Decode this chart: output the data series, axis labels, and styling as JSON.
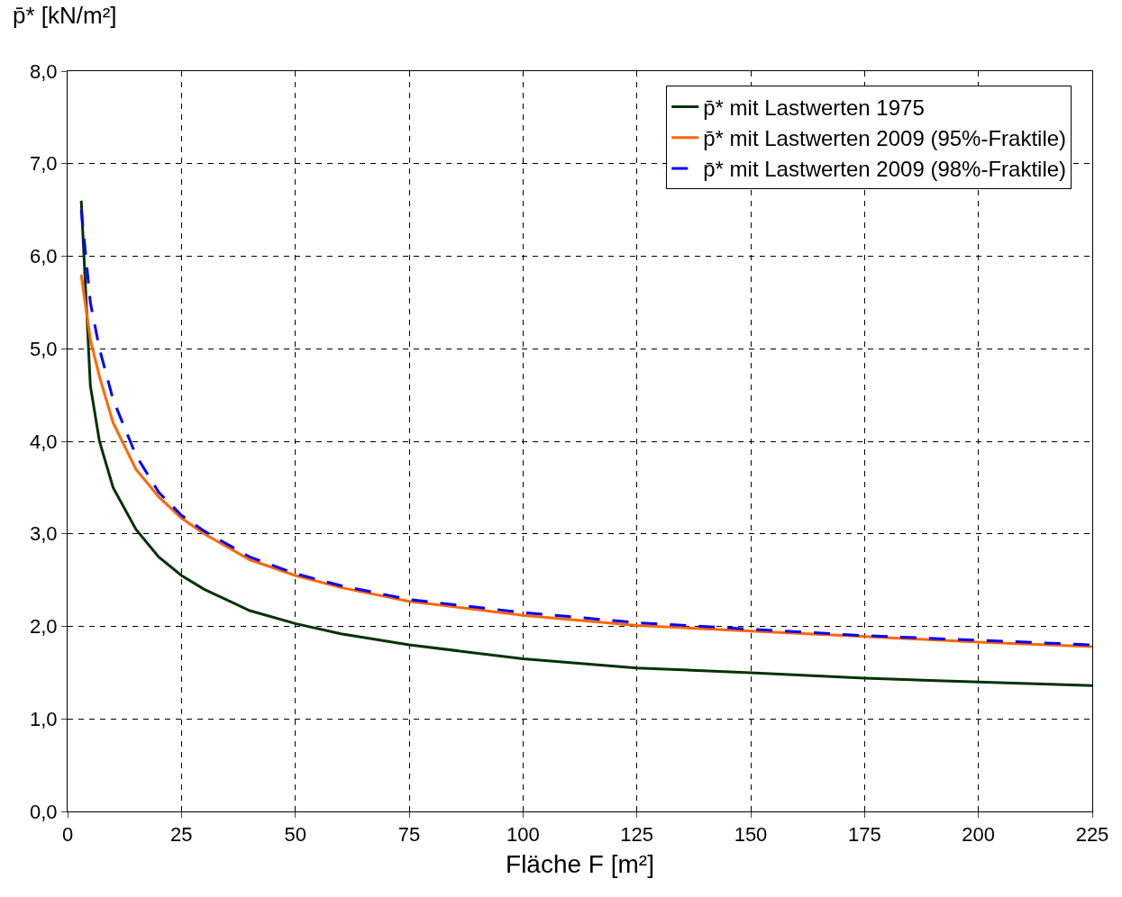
{
  "chart_data": {
    "type": "line",
    "xlabel": "Fläche F [m²]",
    "ylabel": "p̄* [kN/m²]",
    "xlim": [
      0,
      225
    ],
    "xticks": [
      0,
      25,
      50,
      75,
      100,
      125,
      150,
      175,
      200,
      225
    ],
    "ylim": [
      0,
      8
    ],
    "yticks": [
      {
        "value": 0,
        "label": "0,0"
      },
      {
        "value": 1,
        "label": "1,0"
      },
      {
        "value": 2,
        "label": "2,0"
      },
      {
        "value": 3,
        "label": "3,0"
      },
      {
        "value": 4,
        "label": "4,0"
      },
      {
        "value": 5,
        "label": "5,0"
      },
      {
        "value": 6,
        "label": "6,0"
      },
      {
        "value": 7,
        "label": "7,0"
      },
      {
        "value": 8,
        "label": "8,0"
      }
    ],
    "grid": true,
    "legend": "top right",
    "marker": "none",
    "x": [
      3,
      5,
      7,
      10,
      15,
      20,
      25,
      30,
      40,
      50,
      60,
      75,
      100,
      125,
      150,
      175,
      200,
      225
    ],
    "series": [
      {
        "name": "p̄* mit Lastwerten 1975",
        "color": "#003300",
        "line_style": "solid",
        "values": [
          6.6,
          4.6,
          4.0,
          3.5,
          3.05,
          2.75,
          2.55,
          2.4,
          2.17,
          2.03,
          1.92,
          1.8,
          1.65,
          1.55,
          1.5,
          1.44,
          1.4,
          1.36
        ]
      },
      {
        "name": "p̄* mit Lastwerten 2009 (95%-Fraktile)",
        "color": "#ff6600",
        "line_style": "solid",
        "values": [
          5.8,
          5.1,
          4.7,
          4.2,
          3.7,
          3.4,
          3.17,
          3.0,
          2.72,
          2.55,
          2.42,
          2.27,
          2.12,
          2.01,
          1.95,
          1.89,
          1.83,
          1.78
        ]
      },
      {
        "name": "p̄* mit Lastwerten 2009 (98%-Fraktile)",
        "color": "#0000ff",
        "line_style": "dashed",
        "values": [
          6.5,
          5.5,
          5.0,
          4.45,
          3.85,
          3.45,
          3.2,
          3.03,
          2.75,
          2.57,
          2.44,
          2.29,
          2.15,
          2.04,
          1.97,
          1.9,
          1.85,
          1.8
        ]
      }
    ]
  }
}
